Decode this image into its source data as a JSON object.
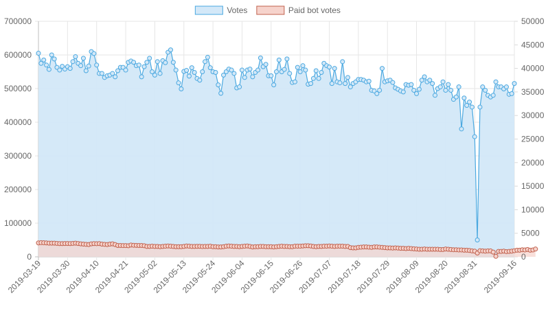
{
  "chart_data": {
    "type": "line",
    "legend": {
      "position": "top",
      "items": [
        {
          "label": "Votes",
          "fill": "#d3e8f8",
          "stroke": "#4aa8e0"
        },
        {
          "label": "Paid bot votes",
          "fill": "#f6d3cc",
          "stroke": "#c0614d"
        }
      ]
    },
    "x_tick_labels": [
      "2019-03-19",
      "2019-03-30",
      "2019-04-10",
      "2019-04-21",
      "2019-05-02",
      "2019-05-13",
      "2019-05-24",
      "2019-06-04",
      "2019-06-15",
      "2019-06-26",
      "2019-07-07",
      "2019-07-18",
      "2019-07-29",
      "2019-08-09",
      "2019-08-20",
      "2019-08-31",
      "2019-09-16"
    ],
    "y_left": {
      "min": 0,
      "max": 700000,
      "ticks": [
        "0",
        "100000",
        "200000",
        "300000",
        "400000",
        "500000",
        "600000",
        "700000"
      ]
    },
    "y_right": {
      "min": 0,
      "max": 50000,
      "ticks": [
        "0",
        "5000",
        "10000",
        "15000",
        "20000",
        "25000",
        "30000",
        "35000",
        "40000",
        "45000",
        "50000"
      ]
    },
    "grid": true,
    "series": [
      {
        "name": "Votes",
        "axis": "left",
        "color": "#4aa8e0",
        "fill": "#d3e8f8",
        "values": [
          605000,
          575000,
          585000,
          570000,
          557000,
          600000,
          588000,
          563000,
          555000,
          566000,
          558000,
          565000,
          560000,
          580000,
          595000,
          575000,
          568000,
          590000,
          553000,
          567000,
          610000,
          604000,
          570000,
          545000,
          545000,
          533000,
          538000,
          540000,
          545000,
          535000,
          553000,
          563000,
          563000,
          555000,
          578000,
          582000,
          578000,
          568000,
          570000,
          535000,
          565000,
          578000,
          590000,
          550000,
          540000,
          580000,
          545000,
          583000,
          577000,
          608000,
          615000,
          578000,
          555000,
          517000,
          499000,
          551000,
          554000,
          537000,
          562000,
          548000,
          530000,
          525000,
          550000,
          580000,
          593000,
          562000,
          550000,
          548000,
          511000,
          486000,
          540000,
          550000,
          558000,
          555000,
          545000,
          502000,
          505000,
          555000,
          533000,
          555000,
          558000,
          535000,
          548000,
          555000,
          591000,
          565000,
          572000,
          538000,
          538000,
          511000,
          550000,
          585000,
          550000,
          557000,
          588000,
          545000,
          518000,
          520000,
          563000,
          550000,
          568000,
          555000,
          513000,
          515000,
          530000,
          553000,
          530000,
          548000,
          575000,
          568000,
          564000,
          515000,
          560000,
          520000,
          517000,
          580000,
          515000,
          533000,
          505000,
          515000,
          520000,
          527000,
          527000,
          525000,
          520000,
          522000,
          495000,
          493000,
          485000,
          495000,
          560000,
          520000,
          523000,
          525000,
          518000,
          502000,
          498000,
          493000,
          490000,
          512000,
          510000,
          512000,
          495000,
          485000,
          498000,
          525000,
          535000,
          520000,
          525000,
          515000,
          480000,
          500000,
          505000,
          520000,
          495000,
          512000,
          495000,
          468000,
          475000,
          505000,
          380000,
          472000,
          450000,
          460000,
          445000,
          357000,
          50000,
          445000,
          505000,
          495000,
          480000,
          475000,
          480000,
          520000,
          505000,
          505000,
          499000,
          505000,
          483000,
          485000,
          515000
        ]
      },
      {
        "name": "Paid bot votes",
        "axis": "right",
        "color": "#c0614d",
        "fill": "#f6d3cc",
        "values": [
          2950,
          3000,
          2980,
          2950,
          2900,
          2900,
          2900,
          2850,
          2800,
          2800,
          2820,
          2830,
          2800,
          2850,
          2900,
          2820,
          2750,
          2700,
          2650,
          2600,
          2750,
          2800,
          2780,
          2800,
          2700,
          2650,
          2600,
          2700,
          2750,
          2600,
          2400,
          2400,
          2380,
          2380,
          2350,
          2500,
          2450,
          2420,
          2400,
          2400,
          2350,
          2200,
          2200,
          2250,
          2200,
          2200,
          2150,
          2200,
          2250,
          2300,
          2250,
          2200,
          2150,
          2150,
          2150,
          2200,
          2300,
          2250,
          2200,
          2200,
          2220,
          2220,
          2180,
          2200,
          2200,
          2250,
          2150,
          2150,
          2100,
          2100,
          2150,
          2250,
          2300,
          2250,
          2200,
          2200,
          2150,
          2200,
          2250,
          2300,
          2200,
          2100,
          2150,
          2150,
          2200,
          2200,
          2150,
          2150,
          2150,
          2100,
          2150,
          2200,
          2250,
          2200,
          2200,
          2150,
          2150,
          2250,
          2250,
          2250,
          2300,
          2350,
          2350,
          2300,
          2200,
          2150,
          2200,
          2200,
          2250,
          2250,
          2300,
          2250,
          2200,
          2250,
          2250,
          2250,
          2200,
          2200,
          1950,
          1900,
          1900,
          2000,
          2050,
          2100,
          2100,
          2050,
          2000,
          2100,
          2100,
          2050,
          2000,
          1950,
          1900,
          1900,
          1850,
          1900,
          1850,
          1800,
          1800,
          1750,
          1800,
          1750,
          1700,
          1650,
          1600,
          1600,
          1650,
          1600,
          1600,
          1600,
          1600,
          1600,
          1550,
          1550,
          1650,
          1600,
          1550,
          1500,
          1500,
          1450,
          1450,
          1400,
          1400,
          1350,
          1250,
          1200,
          800,
          1300,
          1250,
          1200,
          1250,
          1250,
          1000,
          100,
          1150,
          1150,
          1200,
          1100,
          1150,
          1200,
          1300,
          1400,
          1400,
          1500,
          1450,
          1550,
          1400,
          1450,
          1650
        ]
      }
    ]
  }
}
